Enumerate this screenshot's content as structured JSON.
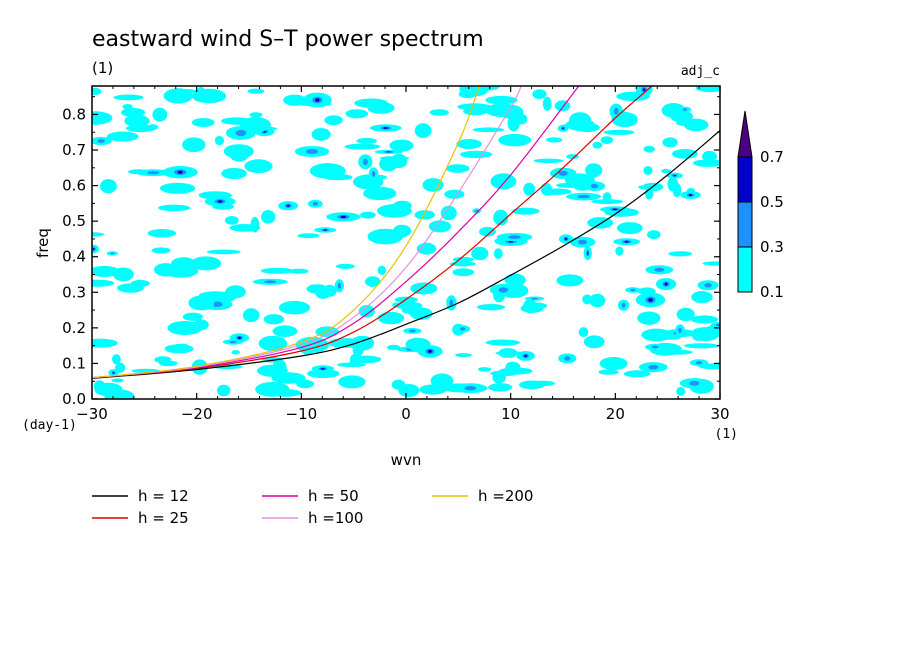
{
  "chart_data": {
    "type": "heatmap",
    "title": "eastward wind S–T power spectrum",
    "subtitle_left": "(1)",
    "subtitle_right": "adj_c",
    "xlabel": "wvn",
    "ylabel": "freq",
    "x_unit": "(1)",
    "y_unit": "(day-1)",
    "xlim": [
      -30,
      30
    ],
    "ylim": [
      0,
      0.88
    ],
    "x_ticks": [
      -30,
      -20,
      -10,
      0,
      10,
      20,
      30
    ],
    "x_tick_labels": [
      "−30",
      "−20",
      "−10",
      "0",
      "10",
      "20",
      "30"
    ],
    "y_ticks": [
      0,
      0.1,
      0.2,
      0.3,
      0.4,
      0.5,
      0.6,
      0.7,
      0.8
    ],
    "y_tick_labels": [
      "0.0",
      "0.1",
      "0.2",
      "0.3",
      "0.4",
      "0.5",
      "0.6",
      "0.7",
      "0.8"
    ],
    "colorbar": {
      "levels": [
        "0.1",
        "0.3",
        "0.5",
        "0.7"
      ],
      "colors": [
        "#00ffff",
        "#1e90ff",
        "#0000cd",
        "#4b0082"
      ]
    },
    "series": [
      {
        "name": "h = 12",
        "color": "#000000",
        "h": 12,
        "x": [
          -30,
          -20,
          -10,
          -5,
          0,
          5,
          10,
          15,
          20,
          25,
          30
        ],
        "y": [
          0.058,
          0.083,
          0.121,
          0.155,
          0.21,
          0.27,
          0.348,
          0.43,
          0.52,
          0.63,
          0.755
        ]
      },
      {
        "name": "h = 25",
        "color": "#e00000",
        "h": 25,
        "x": [
          -30,
          -20,
          -10,
          -5,
          0,
          5,
          10,
          15,
          20,
          23.5
        ],
        "y": [
          0.06,
          0.086,
          0.135,
          0.188,
          0.28,
          0.39,
          0.52,
          0.65,
          0.79,
          0.88
        ]
      },
      {
        "name": "h = 50",
        "color": "#dd00aa",
        "h": 50,
        "x": [
          -30,
          -20,
          -10,
          -5,
          0,
          5,
          10,
          16.5
        ],
        "y": [
          0.06,
          0.088,
          0.145,
          0.213,
          0.33,
          0.47,
          0.63,
          0.88
        ]
      },
      {
        "name": "h =100",
        "color": "#e090e0",
        "h": 100,
        "x": [
          -30,
          -20,
          -10,
          -5,
          0,
          5,
          10,
          11
        ],
        "y": [
          0.06,
          0.09,
          0.153,
          0.23,
          0.37,
          0.58,
          0.82,
          0.88
        ]
      },
      {
        "name": "h =200",
        "color": "#e8c000",
        "h": 200,
        "x": [
          -30,
          -20,
          -10,
          -5,
          0,
          5,
          7
        ],
        "y": [
          0.06,
          0.092,
          0.16,
          0.25,
          0.43,
          0.72,
          0.88
        ]
      }
    ]
  }
}
